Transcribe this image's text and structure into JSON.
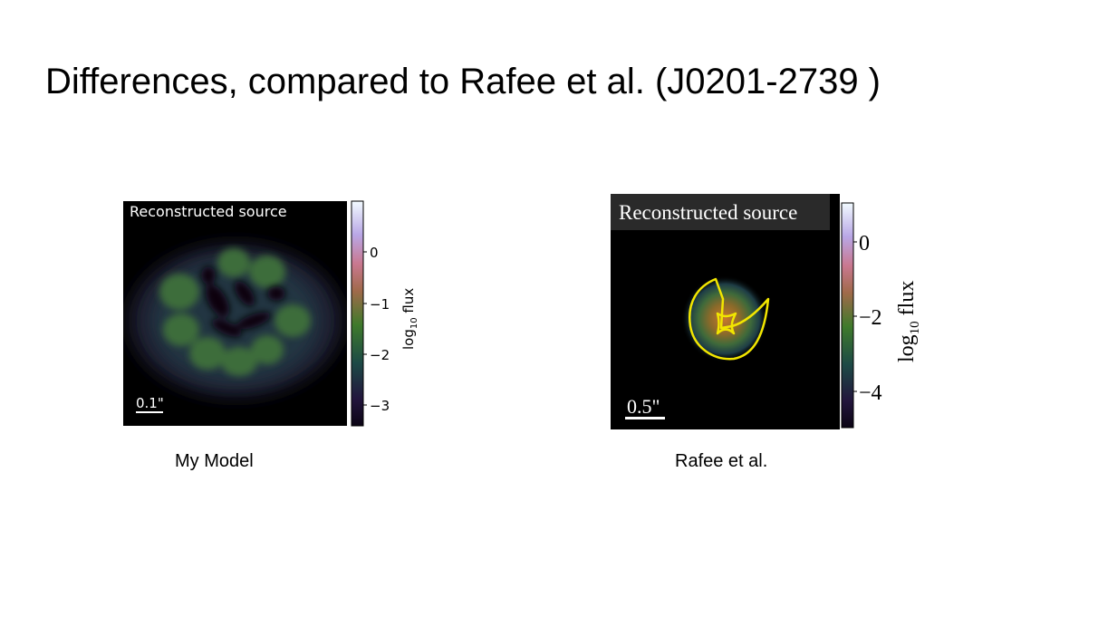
{
  "slide": {
    "title": "Differences, compared to Rafee et al. (J0201-2739 )"
  },
  "left_figure": {
    "panel_label": "Reconstructed source",
    "scale_bar_label": "0.1\"",
    "colorbar": {
      "label_prefix": "log",
      "label_sub": "10",
      "label_suffix": " flux",
      "ticks": [
        "0",
        "−1",
        "−2",
        "−3"
      ]
    },
    "caption": "My Model"
  },
  "right_figure": {
    "panel_label": "Reconstructed source",
    "scale_bar_label": "0.5\"",
    "colorbar": {
      "label_prefix": "log",
      "label_sub": "10",
      "label_suffix": " flux",
      "ticks": [
        "0",
        "−2",
        "−4"
      ]
    },
    "caption": "Rafee et al."
  },
  "colors": {
    "background": "#000000",
    "emission": "#4f7a3a",
    "caustic": "#f2e600",
    "text_on_image": "#ffffff"
  }
}
